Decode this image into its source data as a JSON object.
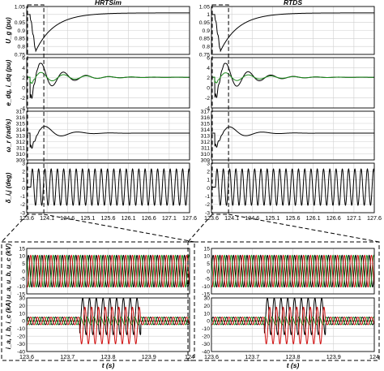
{
  "chart_data": [
    {
      "id": "hrtsim-top",
      "type": "line",
      "title": "HRTSim",
      "xlabel": "",
      "xlim": [
        123.6,
        127.6
      ],
      "xticks": [
        "123.6",
        "124.1",
        "124.6",
        "125.1",
        "125.6",
        "126.1",
        "126.6",
        "127.1",
        "127.6"
      ],
      "panels": [
        {
          "ylabel": "U_g (pu)",
          "ylim": [
            0.75,
            1.05
          ],
          "yticks": [
            "0.75",
            "0.8",
            "0.85",
            "0.9",
            "0.95",
            "1",
            "1.05"
          ],
          "series": [
            {
              "color": "#000000",
              "kind": "recovery",
              "start": 1.0,
              "min": 0.77,
              "final": 1.01
            }
          ]
        },
        {
          "ylabel": "e_dq, i_dq (pu)",
          "ylim": [
            -4,
            6
          ],
          "yticks": [
            "-4",
            "-2",
            "0",
            "2",
            "4",
            "6"
          ],
          "series": [
            {
              "color": "#000000",
              "kind": "damped",
              "base": 2.1,
              "amp": 4.6,
              "decay": 0.55,
              "freq": 1.8
            },
            {
              "color": "#1a8a1a",
              "kind": "damped",
              "base": 2.1,
              "amp": 1.3,
              "decay": 0.9,
              "freq": 1.8
            }
          ]
        },
        {
          "ylabel": "ω_r (rad/s)",
          "ylim": [
            309,
            317
          ],
          "yticks": [
            "309",
            "310",
            "311",
            "312",
            "313",
            "314",
            "315",
            "316",
            "317"
          ],
          "series": [
            {
              "color": "#000000",
              "kind": "damped",
              "base": 313.4,
              "amp": 2.6,
              "decay": 0.45,
              "freq": 1.25
            }
          ]
        },
        {
          "ylabel": "δ_i,j (deg)",
          "ylim": [
            -3,
            3
          ],
          "yticks": [
            "-3",
            "-2",
            "-1",
            "0",
            "1",
            "2",
            "3"
          ],
          "series": [
            {
              "color": "#000000",
              "kind": "steady",
              "base": 0.1,
              "amp": 2.2,
              "freq": 6.5
            }
          ]
        }
      ]
    },
    {
      "id": "rtds-top",
      "type": "line",
      "title": "RTDS",
      "xlabel": "",
      "xlim": [
        123.6,
        127.6
      ],
      "xticks": [
        "123.6",
        "124.1",
        "124.6",
        "125.1",
        "125.6",
        "126.1",
        "126.6",
        "127.1",
        "127.6"
      ],
      "panels": [
        {
          "ylabel": "",
          "ylim": [
            0.75,
            1.05
          ],
          "yticks": [
            "0.75",
            "0.8",
            "0.85",
            "0.9",
            "0.95",
            "1",
            "1.05"
          ],
          "series": [
            {
              "color": "#000000",
              "kind": "recovery",
              "start": 1.0,
              "min": 0.77,
              "final": 1.01
            }
          ]
        },
        {
          "ylabel": "",
          "ylim": [
            -4,
            6
          ],
          "yticks": [
            "-4",
            "-2",
            "0",
            "2",
            "4",
            "6"
          ],
          "series": [
            {
              "color": "#000000",
              "kind": "damped",
              "base": 2.1,
              "amp": 4.4,
              "decay": 0.6,
              "freq": 1.8
            },
            {
              "color": "#1a8a1a",
              "kind": "damped",
              "base": 2.1,
              "amp": 1.2,
              "decay": 0.9,
              "freq": 1.8
            }
          ]
        },
        {
          "ylabel": "",
          "ylim": [
            309,
            317
          ],
          "yticks": [
            "309",
            "310",
            "311",
            "312",
            "313",
            "314",
            "315",
            "316",
            "317"
          ],
          "series": [
            {
              "color": "#000000",
              "kind": "damped",
              "base": 313.4,
              "amp": 2.4,
              "decay": 0.45,
              "freq": 1.25
            }
          ]
        },
        {
          "ylabel": "",
          "ylim": [
            -3,
            3
          ],
          "yticks": [
            "-3",
            "-2",
            "-1",
            "0",
            "1",
            "2",
            "3"
          ],
          "series": [
            {
              "color": "#000000",
              "kind": "steady",
              "base": 0.1,
              "amp": 2.2,
              "freq": 6.5
            }
          ]
        }
      ]
    },
    {
      "id": "hrtsim-zoom",
      "type": "line",
      "xlabel": "t (s)",
      "xlim": [
        123.6,
        124.0
      ],
      "xticks": [
        "123.6",
        "123.7",
        "123.8",
        "123.9",
        "124"
      ],
      "panels": [
        {
          "ylabel": "u_a, u_b, u_c (kV)",
          "ylim": [
            -15,
            15
          ],
          "yticks": [
            "-15",
            "-10",
            "-5",
            "0",
            "5",
            "10",
            "15"
          ],
          "series": [
            {
              "color": "#000000",
              "kind": "sine",
              "amp": 10.5,
              "freq": 60,
              "phase": 0
            },
            {
              "color": "#1a8a1a",
              "kind": "sine",
              "amp": 10.5,
              "freq": 60,
              "phase": 2.094
            },
            {
              "color": "#d01010",
              "kind": "sine",
              "amp": 10.5,
              "freq": 60,
              "phase": 4.189
            }
          ]
        },
        {
          "ylabel": "i_a, i_b, i_c (kA)",
          "ylim": [
            -40,
            30
          ],
          "yticks": [
            "-40",
            "-30",
            "-20",
            "-10",
            "0",
            "10",
            "20",
            "30"
          ],
          "series": [
            {
              "color": "#000000",
              "kind": "fault",
              "amp": 5,
              "fault_amp": 24,
              "offset": 0,
              "fault_offset": 6,
              "freq": 60,
              "phase": 0
            },
            {
              "color": "#1a8a1a",
              "kind": "fault",
              "amp": 5,
              "fault_amp": 5,
              "offset": 0,
              "fault_offset": 0,
              "freq": 60,
              "phase": 2.094
            },
            {
              "color": "#d01010",
              "kind": "fault",
              "amp": 5,
              "fault_amp": 24,
              "offset": 0,
              "fault_offset": -6,
              "freq": 60,
              "phase": 4.189
            }
          ]
        }
      ]
    },
    {
      "id": "rtds-zoom",
      "type": "line",
      "xlabel": "t (s)",
      "xlim": [
        123.6,
        124.0
      ],
      "xticks": [
        "123.6",
        "123.7",
        "123.8",
        "123.9",
        "124"
      ],
      "panels": [
        {
          "ylabel": "",
          "ylim": [
            -15,
            15
          ],
          "yticks": [
            "-15",
            "-10",
            "-5",
            "0",
            "5",
            "10",
            "15"
          ],
          "series": [
            {
              "color": "#000000",
              "kind": "sine",
              "amp": 10.5,
              "freq": 60,
              "phase": 0
            },
            {
              "color": "#1a8a1a",
              "kind": "sine",
              "amp": 10.5,
              "freq": 60,
              "phase": 2.094
            },
            {
              "color": "#d01010",
              "kind": "sine",
              "amp": 10.5,
              "freq": 60,
              "phase": 4.189
            }
          ]
        },
        {
          "ylabel": "",
          "ylim": [
            -40,
            30
          ],
          "yticks": [
            "-40",
            "-30",
            "-20",
            "-10",
            "0",
            "10",
            "20",
            "30"
          ],
          "series": [
            {
              "color": "#000000",
              "kind": "fault",
              "amp": 5,
              "fault_amp": 24,
              "offset": 0,
              "fault_offset": 6,
              "freq": 60,
              "phase": 0
            },
            {
              "color": "#1a8a1a",
              "kind": "fault",
              "amp": 5,
              "fault_amp": 5,
              "offset": 0,
              "fault_offset": 0,
              "freq": 60,
              "phase": 2.094
            },
            {
              "color": "#d01010",
              "kind": "fault",
              "amp": 5,
              "fault_amp": 24,
              "offset": 0,
              "fault_offset": -6,
              "freq": 60,
              "phase": 4.189
            }
          ]
        }
      ]
    }
  ],
  "fault": {
    "t_start": 123.73,
    "t_end": 123.88
  },
  "colors": {
    "black": "#000000",
    "green": "#1a8a1a",
    "red": "#d01010",
    "grid": "#cfcfcf"
  }
}
